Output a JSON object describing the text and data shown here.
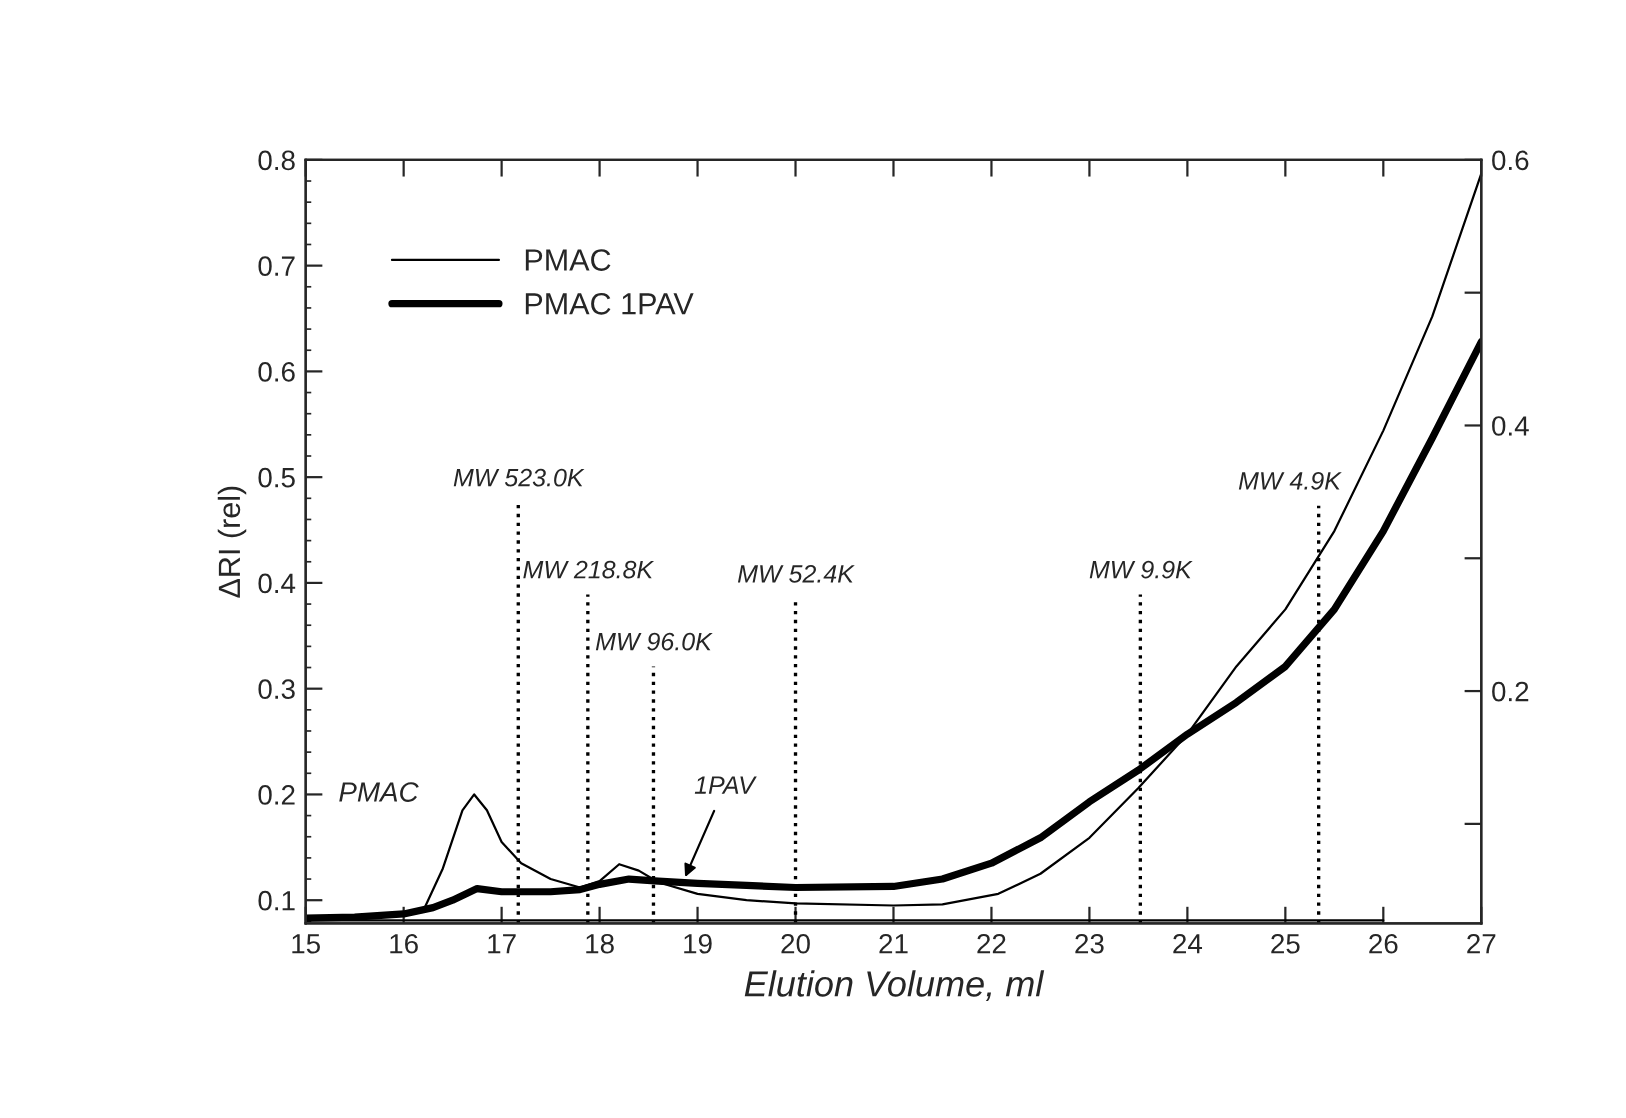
{
  "chart_data": {
    "type": "line",
    "xlabel": "Elution Volume, ml",
    "ylabel": "ΔRI (rel)",
    "xlim": [
      15,
      27
    ],
    "xticks": [
      15,
      16,
      17,
      18,
      19,
      20,
      21,
      22,
      23,
      24,
      25,
      26,
      27
    ],
    "ylim": [
      0.078,
      0.8
    ],
    "yticks": [
      0.1,
      0.2,
      0.3,
      0.4,
      0.5,
      0.6,
      0.7,
      0.8
    ],
    "y2lim": [
      0.025,
      0.6
    ],
    "y2ticks": [
      {
        "value": 0.1,
        "label": null
      },
      0.2,
      {
        "value": 0.3,
        "label": null
      },
      0.4,
      {
        "value": 0.5,
        "label": null
      },
      0.6
    ],
    "legend": "top left",
    "grid": false,
    "series": [
      {
        "name": "PMAC",
        "color": "#000000",
        "x": [
          15,
          15.5,
          16,
          16.2,
          16.4,
          16.6,
          16.72,
          16.85,
          17.0,
          17.2,
          17.5,
          17.8,
          18.0,
          18.2,
          18.4,
          18.6,
          19,
          19.5,
          20,
          21,
          21.5,
          22.07,
          22.5,
          23,
          23.5,
          24,
          24.5,
          25,
          25.5,
          26,
          26.5,
          27
        ],
        "values": [
          0.083,
          0.084,
          0.086,
          0.09,
          0.13,
          0.185,
          0.2,
          0.185,
          0.155,
          0.135,
          0.12,
          0.112,
          0.118,
          0.134,
          0.128,
          0.117,
          0.106,
          0.1,
          0.097,
          0.095,
          0.096,
          0.106,
          0.125,
          0.159,
          0.206,
          0.257,
          0.321,
          0.375,
          0.449,
          0.544,
          0.652,
          0.787
        ]
      },
      {
        "name": "PMAC 1PAV",
        "color": "#000000",
        "x": [
          15,
          15.5,
          16,
          16.3,
          16.5,
          16.75,
          17,
          17.5,
          17.8,
          18.0,
          18.3,
          18.6,
          19,
          19.5,
          20,
          21,
          21.5,
          22,
          22.5,
          23,
          23.5,
          24,
          24.5,
          25,
          25.5,
          26,
          26.5,
          27
        ],
        "values": [
          0.083,
          0.084,
          0.087,
          0.093,
          0.1,
          0.111,
          0.108,
          0.108,
          0.11,
          0.115,
          0.12,
          0.118,
          0.116,
          0.114,
          0.112,
          0.113,
          0.12,
          0.135,
          0.159,
          0.193,
          0.223,
          0.257,
          0.287,
          0.321,
          0.375,
          0.449,
          0.537,
          0.628
        ]
      },
      {
        "color": "#000000",
        "x": [
          15,
          26
        ],
        "values": [
          0.081,
          0.081
        ]
      }
    ],
    "ref_lines": [
      {
        "axis": "x",
        "value": 17.17,
        "line_style": "dotted"
      },
      {
        "axis": "x",
        "value": 17.88,
        "line_style": "dotted"
      },
      {
        "axis": "x",
        "value": 18.55,
        "line_style": "dotted"
      },
      {
        "axis": "x",
        "value": 20.0,
        "line_style": "dotted"
      },
      {
        "axis": "x",
        "value": 23.52,
        "line_style": "dotted"
      },
      {
        "axis": "x",
        "value": 25.34,
        "line_style": "dotted"
      }
    ],
    "annotations": [
      {
        "text": "MW 523.0K",
        "x": 17.17,
        "y": 0.476
      },
      {
        "text": "MW 218.8K",
        "x": 17.88,
        "y": 0.389
      },
      {
        "text": "MW 96.0K",
        "x": 18.55,
        "y": 0.321
      },
      {
        "text": "MW 52.4K",
        "x": 20.0,
        "y": 0.385
      },
      {
        "text": "MW 9.9K",
        "x": 23.52,
        "y": 0.389
      },
      {
        "text": "MW 4.9K",
        "x": 25.34,
        "y": 0.473
      },
      {
        "text": "PMAC",
        "x": 16.72,
        "y": 0.2
      },
      {
        "text": "1PAV",
        "x": 18.85,
        "y": 0.117
      }
    ]
  }
}
